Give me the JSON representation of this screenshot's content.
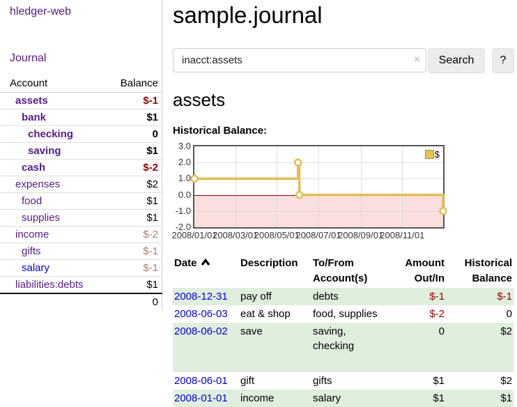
{
  "app": {
    "title": "hledger-web"
  },
  "sidebar": {
    "nav": {
      "journal_label": "Journal"
    },
    "accounts_table": {
      "headers": {
        "account": "Account",
        "balance": "Balance"
      },
      "rows": [
        {
          "name": "assets",
          "depth": 1,
          "bold": true,
          "link": "purple",
          "balance": "$-1",
          "negative": true,
          "dim": false
        },
        {
          "name": "bank",
          "depth": 2,
          "bold": true,
          "link": "purple",
          "balance": "$1",
          "negative": false,
          "dim": false
        },
        {
          "name": "checking",
          "depth": 3,
          "bold": true,
          "link": "purple",
          "balance": "0",
          "negative": false,
          "dim": false
        },
        {
          "name": "saving",
          "depth": 3,
          "bold": true,
          "link": "purple",
          "balance": "$1",
          "negative": false,
          "dim": false
        },
        {
          "name": "cash",
          "depth": 2,
          "bold": true,
          "link": "purple",
          "balance": "$-2",
          "negative": true,
          "dim": false
        },
        {
          "name": "expenses",
          "depth": 1,
          "bold": false,
          "link": "purple",
          "balance": "$2",
          "negative": false,
          "dim": false
        },
        {
          "name": "food",
          "depth": 2,
          "bold": false,
          "link": "purple",
          "balance": "$1",
          "negative": false,
          "dim": false
        },
        {
          "name": "supplies",
          "depth": 2,
          "bold": false,
          "link": "purple",
          "balance": "$1",
          "negative": false,
          "dim": false
        },
        {
          "name": "income",
          "depth": 1,
          "bold": false,
          "link": "purple",
          "balance": "$-2",
          "negative": true,
          "dim": true
        },
        {
          "name": "gifts",
          "depth": 2,
          "bold": false,
          "link": "purple",
          "balance": "$-1",
          "negative": true,
          "dim": true
        },
        {
          "name": "salary",
          "depth": 2,
          "bold": false,
          "link": "blue",
          "balance": "$-1",
          "negative": true,
          "dim": true
        },
        {
          "name": "liabilities:debts",
          "depth": 1,
          "bold": false,
          "link": "purple",
          "balance": "$1",
          "negative": false,
          "dim": false
        }
      ],
      "total": "0"
    }
  },
  "main": {
    "page_title": "sample.journal",
    "search": {
      "value": "inacct:assets",
      "clear_icon": "×",
      "button_label": "Search",
      "help_label": "?"
    },
    "account_heading": "assets",
    "chart_label": "Historical Balance:",
    "register_table": {
      "headers": {
        "date": "Date",
        "description": "Description",
        "accounts": "To/From Account(s)",
        "amount": "Amount Out/In",
        "balance": "Historical Balance"
      },
      "rows": [
        {
          "date": "2008-12-31",
          "description": "pay off",
          "accounts": "debts",
          "amount": "$-1",
          "amount_negative": true,
          "balance": "$-1",
          "balance_negative": true,
          "shaded": true
        },
        {
          "date": "2008-06-03",
          "description": "eat & shop",
          "accounts": "food, supplies",
          "amount": "$-2",
          "amount_negative": true,
          "balance": "0",
          "balance_negative": false,
          "shaded": false
        },
        {
          "date": "2008-06-02",
          "description": "save",
          "accounts": "saving, checking",
          "amount": "0",
          "amount_negative": false,
          "balance": "$2",
          "balance_negative": false,
          "shaded": true
        },
        {
          "date": "2008-06-01",
          "description": "gift",
          "accounts": "gifts",
          "amount": "$1",
          "amount_negative": false,
          "balance": "$2",
          "balance_negative": false,
          "shaded": false
        },
        {
          "date": "2008-01-01",
          "description": "income",
          "accounts": "salary",
          "amount": "$1",
          "amount_negative": false,
          "balance": "$1",
          "balance_negative": false,
          "shaded": true
        }
      ]
    }
  },
  "chart_data": {
    "type": "line",
    "step": true,
    "title": "Historical Balance:",
    "series": [
      {
        "name": "$",
        "points": [
          {
            "date": "2008-01-01",
            "value": 1
          },
          {
            "date": "2008-06-01",
            "value": 2
          },
          {
            "date": "2008-06-03",
            "value": 0
          },
          {
            "date": "2008-12-31",
            "value": -1
          }
        ]
      }
    ],
    "x_range": [
      "2008-01-01",
      "2008-12-31"
    ],
    "ylim": [
      -2,
      3
    ],
    "yticks": [
      3.0,
      2.0,
      1.0,
      0.0,
      -1.0,
      -2.0
    ],
    "xticks": [
      "2008/01/01",
      "2008/03/01",
      "2008/05/01",
      "2008/07/01",
      "2008/09/01",
      "2008/11/01"
    ],
    "grid": true,
    "legend_position": "top-right",
    "line_color": "#e3bd53",
    "marker_fill": "#ffffff",
    "legend_swatch_color": "#e8c24d",
    "negative_region_fill": "#fbdede",
    "zero_line_color": "#8b0000"
  },
  "colors": {
    "link_visited_purple": "#551a8b",
    "link_blue": "#0000e0",
    "negative_red": "#990000",
    "negative_dim_red": "#b87878",
    "row_green": "#dfeedd"
  }
}
